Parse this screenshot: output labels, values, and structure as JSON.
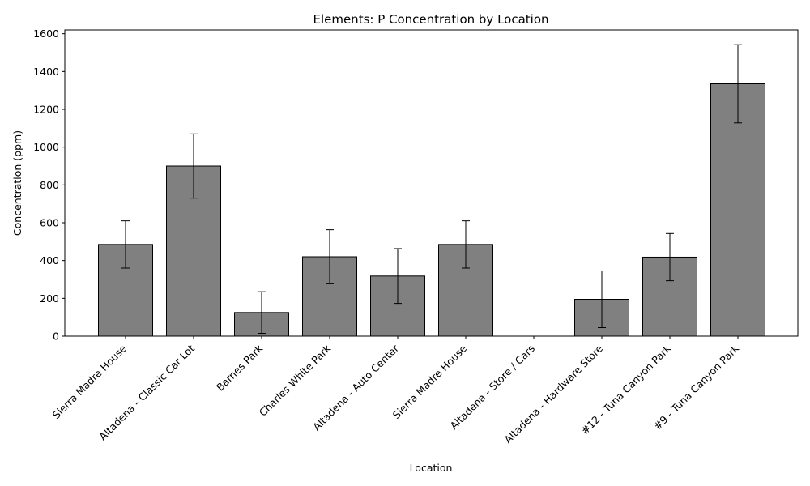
{
  "chart_data": {
    "type": "bar",
    "title": "Elements: P Concentration by Location",
    "xlabel": "Location",
    "ylabel": "Concentration (ppm)",
    "ylim": [
      0,
      1620
    ],
    "yticks": [
      0,
      200,
      400,
      600,
      800,
      1000,
      1200,
      1400,
      1600
    ],
    "grid": false,
    "categories": [
      "Sierra Madre House",
      "Altadena - Classic Car Lot",
      "Barnes Park",
      "Charles White Park",
      "Altadena - Auto Center",
      "Sierra Madre House",
      "Altadena - Store / Cars",
      "Altadena - Hardware Store",
      "#12 - Tuna Canyon Park",
      "#9 - Tuna Canyon Park"
    ],
    "values": [
      485,
      900,
      125,
      420,
      318,
      485,
      null,
      195,
      418,
      1335
    ],
    "errors": [
      125,
      170,
      110,
      143,
      145,
      125,
      null,
      150,
      125,
      207
    ],
    "bar_color": "#808080",
    "edge_color": "#000000"
  }
}
